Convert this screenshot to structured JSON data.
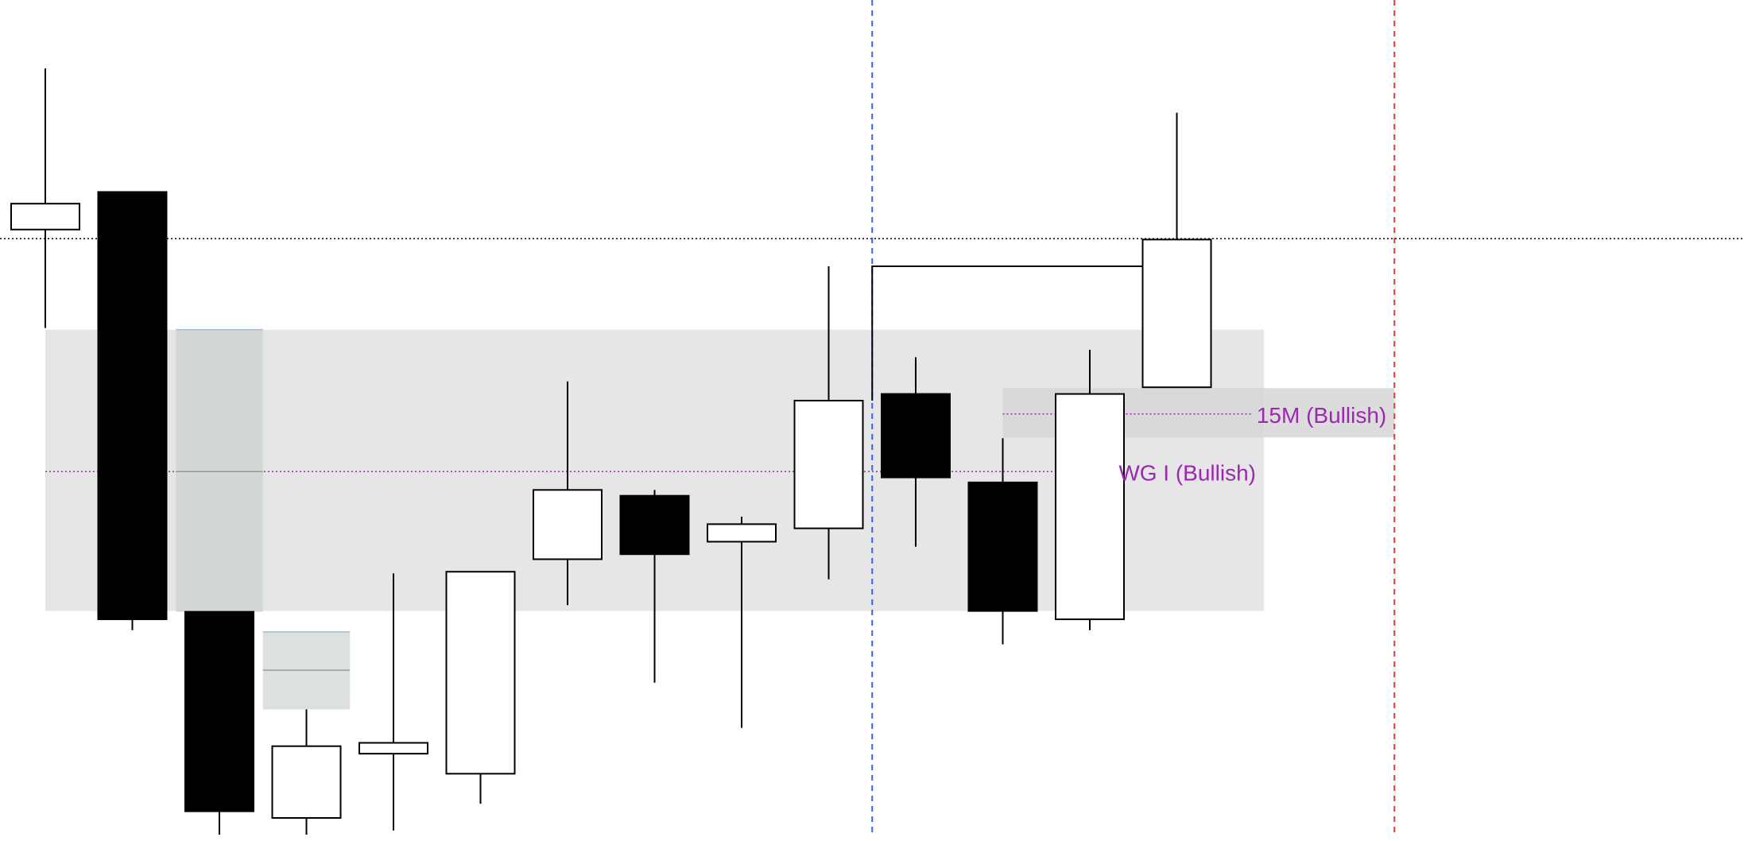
{
  "chart_data": {
    "type": "candlestick",
    "title": "",
    "xlabel": "",
    "ylabel": "",
    "grid": false,
    "legend": "none",
    "price_range": [
      0,
      100
    ],
    "bar_range": [
      0,
      19
    ],
    "candles": [
      {
        "open": 72.5,
        "high": 91.8,
        "low": 60.7,
        "close": 75.6
      },
      {
        "open": 77.0,
        "high": 77.0,
        "low": 24.5,
        "close": 25.8
      },
      {
        "open": 26.7,
        "high": 26.7,
        "low": 0,
        "close": 2.8
      },
      {
        "open": 2.0,
        "high": 15.0,
        "low": 0,
        "close": 10.6
      },
      {
        "open": 9.7,
        "high": 31.3,
        "low": 0.5,
        "close": 11.0
      },
      {
        "open": 7.3,
        "high": 31.5,
        "low": 3.7,
        "close": 31.5
      },
      {
        "open": 33.0,
        "high": 54.3,
        "low": 27.5,
        "close": 41.3
      },
      {
        "open": 40.6,
        "high": 41.3,
        "low": 18.2,
        "close": 33.6
      },
      {
        "open": 35.1,
        "high": 38.1,
        "low": 12.8,
        "close": 37.2
      },
      {
        "open": 36.7,
        "high": 68.1,
        "low": 30.6,
        "close": 52.0
      },
      {
        "open": 52.8,
        "high": 57.2,
        "low": 34.5,
        "close": 42.8
      },
      {
        "open": 42.2,
        "high": 47.5,
        "low": 22.8,
        "close": 26.8
      },
      {
        "open": 25.8,
        "high": 58.1,
        "low": 24.5,
        "close": 52.8
      },
      {
        "open": 53.6,
        "high": 86.5,
        "low": 53.6,
        "close": 71.3
      }
    ],
    "levels": [
      {
        "type": "dotted-horizontal",
        "price": 71.4,
        "color": "#000000"
      }
    ],
    "vertical_markers": [
      {
        "bar": 9.5,
        "color": "#2962ff",
        "style": "dashed"
      },
      {
        "bar": 15.5,
        "color": "#e53935",
        "style": "dashed"
      }
    ],
    "connector": {
      "from_bar": 9.5,
      "to_bar": 13,
      "price": 68.1,
      "drop_to_price": 52.0
    },
    "zones": [
      {
        "label": "WG I (Bullish)",
        "from_bar": 0,
        "to_bar": 14,
        "low": 26.8,
        "high": 60.5,
        "midline": 43.5,
        "label_price": 43.4,
        "color": "#e6e6e6",
        "line_color": "#9c27b0"
      },
      {
        "label": "15M (Bullish)",
        "from_bar": 11,
        "to_bar": 15.5,
        "low": 47.6,
        "high": 53.5,
        "midline": 50.4,
        "label_price": 50.3,
        "color": "#d6d6d6",
        "line_color": "#9c27b0"
      }
    ],
    "gaps": [
      {
        "from_bar": 1.5,
        "to_bar": 2.5,
        "low": 26.7,
        "high": 60.5,
        "midline": 43.5,
        "color": "#d3d8d4"
      },
      {
        "from_bar": 2.5,
        "to_bar": 3.5,
        "low": 15.0,
        "high": 24.3,
        "midline": 19.7,
        "color": "#dce1dd"
      }
    ]
  }
}
